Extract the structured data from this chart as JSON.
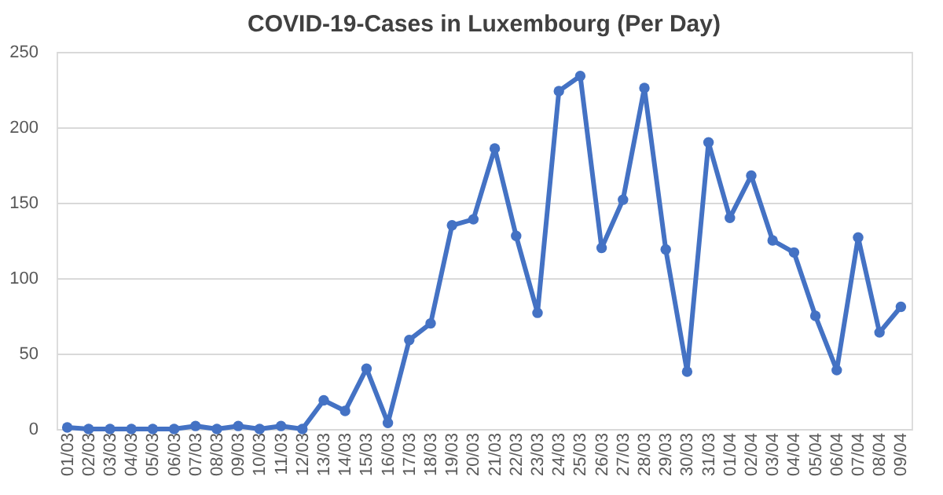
{
  "chart_data": {
    "type": "line",
    "title": "COVID-19-Cases in Luxembourg (Per Day)",
    "categories": [
      "01/03",
      "02/03",
      "03/03",
      "04/03",
      "05/03",
      "06/03",
      "07/03",
      "08/03",
      "09/03",
      "10/03",
      "11/03",
      "12/03",
      "13/03",
      "14/03",
      "15/03",
      "16/03",
      "17/03",
      "18/03",
      "19/03",
      "20/03",
      "21/03",
      "22/03",
      "23/03",
      "24/03",
      "25/03",
      "26/03",
      "27/03",
      "28/03",
      "29/03",
      "30/03",
      "31/03",
      "01/04",
      "02/04",
      "03/04",
      "04/04",
      "05/04",
      "06/04",
      "07/04",
      "08/04",
      "09/04"
    ],
    "series": [
      {
        "color": "#4472c4",
        "values": [
          1,
          0,
          0,
          0,
          0,
          0,
          2,
          0,
          2,
          0,
          2,
          0,
          19,
          12,
          40,
          4,
          59,
          70,
          135,
          139,
          186,
          128,
          77,
          224,
          234,
          120,
          152,
          226,
          119,
          38,
          190,
          140,
          168,
          125,
          117,
          75,
          39,
          127,
          64,
          81
        ]
      }
    ],
    "ylim": [
      0,
      250
    ],
    "yticks": [
      0,
      50,
      100,
      150,
      200,
      250
    ],
    "grid": "y",
    "marker": "circle",
    "line_style": "solid"
  }
}
